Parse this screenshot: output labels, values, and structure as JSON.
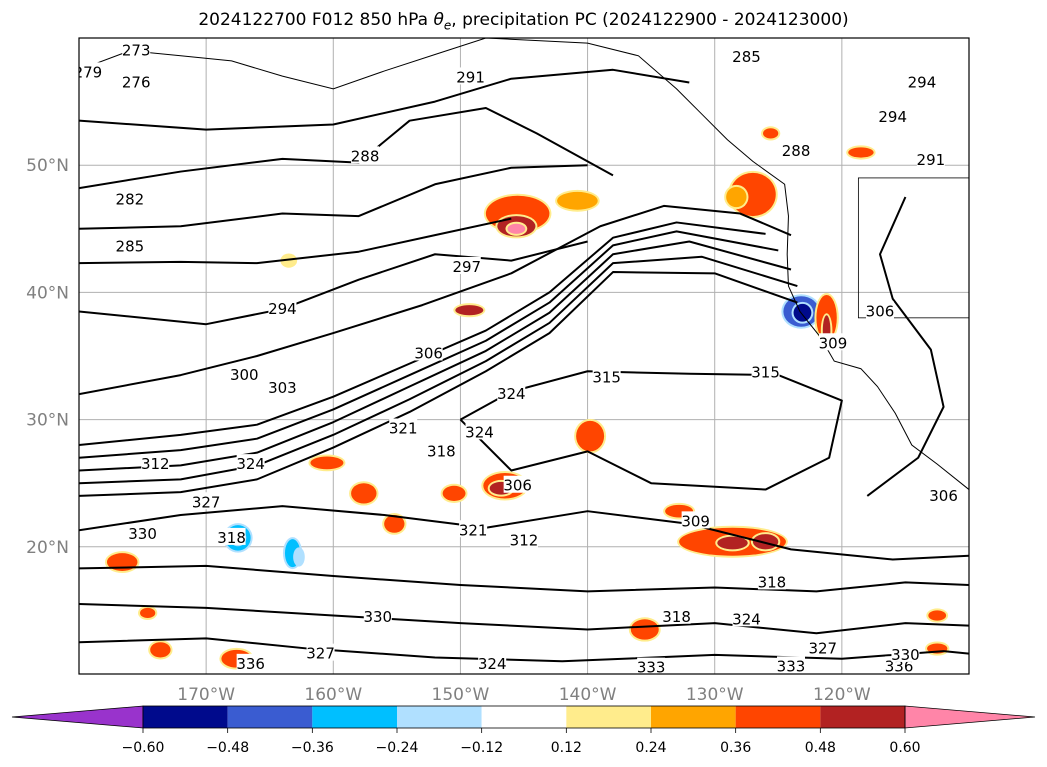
{
  "title": {
    "prefix": "2024122700 F012 850 hPa ",
    "symbol": "θ",
    "subscript": "e",
    "suffix": ", precipitation PC (2024122900 - 2024123000)"
  },
  "map": {
    "projection": "equirectangular",
    "lon_range": [
      -180,
      -110
    ],
    "lat_range": [
      10,
      60
    ],
    "gridlines": true,
    "lat_ticks": [
      {
        "value": 20,
        "label": "20°N"
      },
      {
        "value": 30,
        "label": "30°N"
      },
      {
        "value": 40,
        "label": "40°N"
      },
      {
        "value": 50,
        "label": "50°N"
      }
    ],
    "lon_ticks": [
      {
        "value": -170,
        "label": "170°W"
      },
      {
        "value": -160,
        "label": "160°W"
      },
      {
        "value": -150,
        "label": "150°W"
      },
      {
        "value": -140,
        "label": "140°W"
      },
      {
        "value": -130,
        "label": "130°W"
      },
      {
        "value": -120,
        "label": "120°W"
      }
    ],
    "contour_variable": "850 hPa theta-e",
    "contour_labels": [
      {
        "text": "273",
        "lon": -175.5,
        "lat": 59.0
      },
      {
        "text": "276",
        "lon": -175.5,
        "lat": 56.5
      },
      {
        "text": "279",
        "lon": -179.3,
        "lat": 57.3
      },
      {
        "text": "282",
        "lon": -176.0,
        "lat": 47.3
      },
      {
        "text": "285",
        "lon": -176.0,
        "lat": 43.6
      },
      {
        "text": "288",
        "lon": -157.5,
        "lat": 50.7
      },
      {
        "text": "291",
        "lon": -149.2,
        "lat": 56.9
      },
      {
        "text": "285",
        "lon": -127.5,
        "lat": 58.5
      },
      {
        "text": "294",
        "lon": -113.7,
        "lat": 56.5
      },
      {
        "text": "294",
        "lon": -116.0,
        "lat": 53.8
      },
      {
        "text": "291",
        "lon": -113.0,
        "lat": 50.4
      },
      {
        "text": "288",
        "lon": -123.6,
        "lat": 51.1
      },
      {
        "text": "297",
        "lon": -149.5,
        "lat": 42.0
      },
      {
        "text": "294",
        "lon": -164.0,
        "lat": 38.7
      },
      {
        "text": "300",
        "lon": -167.0,
        "lat": 33.5
      },
      {
        "text": "303",
        "lon": -164.0,
        "lat": 32.5
      },
      {
        "text": "306",
        "lon": -152.5,
        "lat": 35.2
      },
      {
        "text": "306",
        "lon": -117.0,
        "lat": 38.5
      },
      {
        "text": "309",
        "lon": -120.7,
        "lat": 36.0
      },
      {
        "text": "312",
        "lon": -174.0,
        "lat": 26.5
      },
      {
        "text": "315",
        "lon": -138.5,
        "lat": 33.3
      },
      {
        "text": "315",
        "lon": -126.0,
        "lat": 33.7
      },
      {
        "text": "324",
        "lon": -146.0,
        "lat": 32.0
      },
      {
        "text": "321",
        "lon": -154.5,
        "lat": 29.3
      },
      {
        "text": "324",
        "lon": -166.5,
        "lat": 26.5
      },
      {
        "text": "318",
        "lon": -151.5,
        "lat": 27.5
      },
      {
        "text": "324",
        "lon": -148.5,
        "lat": 29.0
      },
      {
        "text": "306",
        "lon": -145.5,
        "lat": 24.8
      },
      {
        "text": "306",
        "lon": -112.0,
        "lat": 24.0
      },
      {
        "text": "327",
        "lon": -170.0,
        "lat": 23.5
      },
      {
        "text": "330",
        "lon": -175.0,
        "lat": 21.0
      },
      {
        "text": "318",
        "lon": -168.0,
        "lat": 20.7
      },
      {
        "text": "321",
        "lon": -149.0,
        "lat": 21.3
      },
      {
        "text": "312",
        "lon": -145.0,
        "lat": 20.5
      },
      {
        "text": "309",
        "lon": -131.5,
        "lat": 22.0
      },
      {
        "text": "318",
        "lon": -125.5,
        "lat": 17.2
      },
      {
        "text": "318",
        "lon": -133.0,
        "lat": 14.5
      },
      {
        "text": "324",
        "lon": -127.5,
        "lat": 14.3
      },
      {
        "text": "327",
        "lon": -121.5,
        "lat": 12.0
      },
      {
        "text": "330",
        "lon": -156.5,
        "lat": 14.5
      },
      {
        "text": "336",
        "lon": -166.5,
        "lat": 10.8
      },
      {
        "text": "327",
        "lon": -161.0,
        "lat": 11.6
      },
      {
        "text": "324",
        "lon": -147.5,
        "lat": 10.8
      },
      {
        "text": "333",
        "lon": -135.0,
        "lat": 10.5
      },
      {
        "text": "333",
        "lon": -124.0,
        "lat": 10.6
      },
      {
        "text": "336",
        "lon": -115.5,
        "lat": 10.6
      },
      {
        "text": "330",
        "lon": -115.0,
        "lat": 11.5
      }
    ]
  },
  "colorbar": {
    "tick_labels": [
      "−0.60",
      "−0.48",
      "−0.36",
      "−0.24",
      "−0.12",
      "0.12",
      "0.24",
      "0.36",
      "0.48",
      "0.60"
    ],
    "low_color": "#9933cc",
    "colors": [
      "#000a8c",
      "#3a5cd1",
      "#00bfff",
      "#b0e0ff",
      "#ffffff",
      "#ffec8c",
      "#ffa500",
      "#ff4500",
      "#b22222"
    ],
    "high_color": "#ff85a8"
  },
  "palette": {
    "contour": "#000000",
    "gridline": "#b0b0b0",
    "coast": "#000000",
    "tick_label": "#808080"
  }
}
